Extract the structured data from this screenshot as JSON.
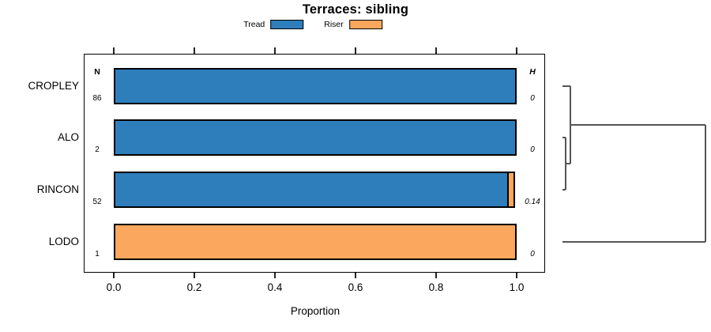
{
  "title": "Terraces: sibling",
  "legend": {
    "items": [
      {
        "label": "Tread",
        "color": "#2e7ebc"
      },
      {
        "label": "Riser",
        "color": "#fba75d"
      }
    ]
  },
  "table": {
    "n_header": "N",
    "h_header": "H"
  },
  "chart_data": {
    "type": "bar",
    "orientation": "horizontal",
    "stacked": true,
    "title": "Terraces: sibling",
    "categories": [
      "CROPLEY",
      "ALO",
      "RINCON",
      "LODO"
    ],
    "series": [
      {
        "name": "Tread",
        "color": "#2e7ebc",
        "values": [
          1.0,
          1.0,
          0.981,
          0.0
        ]
      },
      {
        "name": "Riser",
        "color": "#fba75d",
        "values": [
          0.0,
          0.0,
          0.019,
          1.0
        ]
      }
    ],
    "annotations": {
      "N": [
        "86",
        "2",
        "52",
        "1"
      ],
      "H": [
        "0",
        "0",
        "0.14",
        "0"
      ]
    },
    "xlabel": "Proportion",
    "xlim": [
      0,
      1
    ],
    "xticks": [
      "0.0",
      "0.2",
      "0.4",
      "0.6",
      "0.8",
      "1.0"
    ],
    "legend_position": "top",
    "grid": false,
    "dendrogram": {
      "side": "right",
      "tree": {
        "h": 1.0,
        "children": [
          {
            "h": 0.055,
            "children": [
              {
                "leaf": "CROPLEY"
              },
              {
                "h": 0.022,
                "children": [
                  {
                    "leaf": "ALO"
                  },
                  {
                    "leaf": "RINCON"
                  }
                ]
              }
            ]
          },
          {
            "leaf": "LODO"
          }
        ]
      }
    }
  }
}
